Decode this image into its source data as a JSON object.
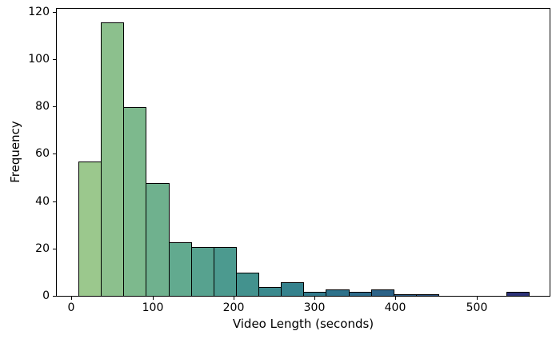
{
  "figure": {
    "xlabel": "Video Length (seconds)",
    "ylabel": "Frequency",
    "background": "#ffffff"
  },
  "chart_data": {
    "type": "bar",
    "subtype": "histogram",
    "title": "",
    "xlabel": "Video Length (seconds)",
    "ylabel": "Frequency",
    "bin_edges": [
      8.7,
      36.5,
      64.2,
      92.0,
      119.8,
      147.5,
      175.3,
      203.1,
      230.8,
      258.6,
      286.4,
      314.1,
      341.9,
      369.7,
      397.4,
      425.2,
      453.0,
      480.7,
      508.5,
      536.3,
      564.0
    ],
    "counts": [
      57,
      116,
      80,
      48,
      23,
      21,
      21,
      10,
      4,
      6,
      2,
      3,
      2,
      3,
      1,
      1,
      0,
      0,
      0,
      2
    ],
    "bar_colors": [
      "#9bc88d",
      "#8cc08d",
      "#7db98d",
      "#6fb18e",
      "#62aa8f",
      "#57a28f",
      "#4c9a8f",
      "#43928e",
      "#3b8a8e",
      "#35828d",
      "#317a8c",
      "#2e728b",
      "#2c6a89",
      "#2b6287",
      "#2a5a84",
      "#2a5281",
      "#2a4a7e",
      "#2b427b",
      "#2b3a79",
      "#2c3277"
    ],
    "edge_color": "#000000",
    "xticks": [
      0,
      100,
      200,
      300,
      400,
      500
    ],
    "yticks": [
      0,
      20,
      40,
      60,
      80,
      100,
      120
    ],
    "xtick_labels": [
      "0",
      "100",
      "200",
      "300",
      "400",
      "500"
    ],
    "ytick_labels": [
      "0",
      "20",
      "40",
      "60",
      "80",
      "100",
      "120"
    ],
    "xlim": [
      -19,
      591
    ],
    "ylim": [
      0,
      122
    ],
    "grid": false,
    "legend": null
  }
}
